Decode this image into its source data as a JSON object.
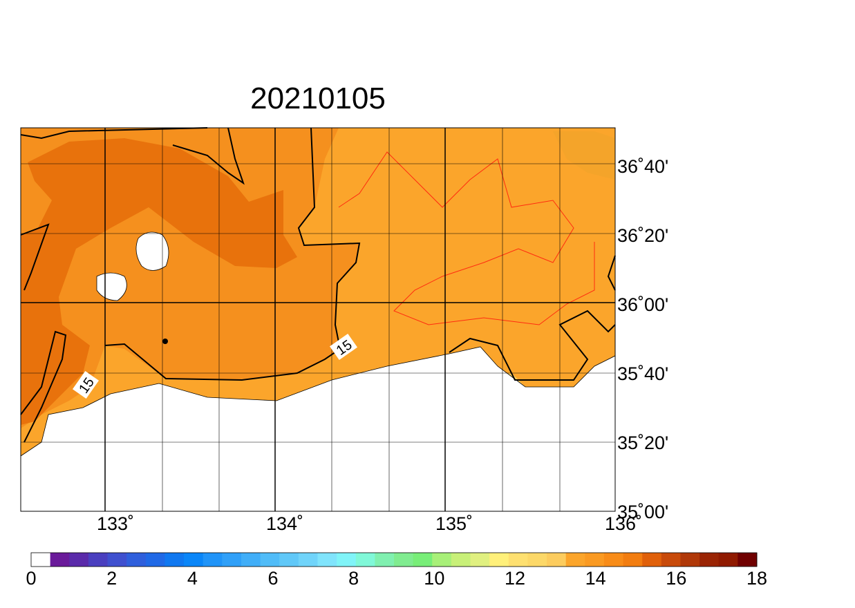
{
  "title": "20210105",
  "map": {
    "lon_labels": [
      "133˚",
      "134˚",
      "135˚",
      "136˚"
    ],
    "lat_labels": [
      "35˚00'",
      "35˚20'",
      "35˚40'",
      "36˚00'",
      "36˚20'",
      "36˚40'"
    ],
    "contour_labels": [
      "15",
      "15"
    ]
  },
  "colorbar": {
    "ticks": [
      0,
      2,
      4,
      6,
      8,
      10,
      12,
      14,
      16,
      18
    ],
    "colors": [
      "#ffffff",
      "#6a1a9a",
      "#5a2aaa",
      "#4a3fbf",
      "#3f50cf",
      "#2f5fdc",
      "#2069e6",
      "#1078f0",
      "#0a86f8",
      "#2094f8",
      "#30a0f8",
      "#40aef8",
      "#50bcf8",
      "#60c8f8",
      "#70d4fa",
      "#80e4fc",
      "#80f4f8",
      "#80f8d8",
      "#80f0b0",
      "#80ec90",
      "#78ee78",
      "#a8f078",
      "#c8f078",
      "#e0f080",
      "#fff07a",
      "#fee070",
      "#fcd868",
      "#fccc5e",
      "#fba52b",
      "#fa9a22",
      "#f88c18",
      "#f27d10",
      "#e0600a",
      "#c84a0a",
      "#b03808",
      "#9a2404",
      "#901a00",
      "#700000"
    ]
  }
}
